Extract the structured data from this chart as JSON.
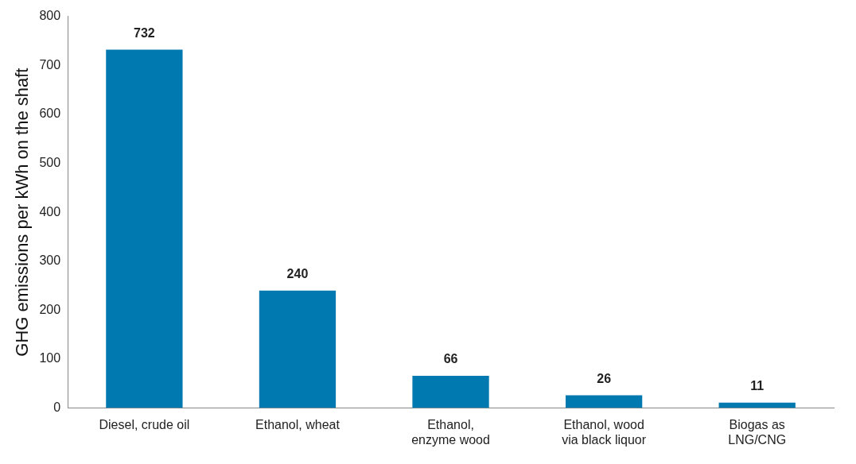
{
  "chart_data": {
    "type": "bar",
    "ylabel": "GHG emissions per kWh on the shaft",
    "categories": [
      "Diesel, crude oil",
      "Ethanol, wheat",
      "Ethanol,\nenzyme wood",
      "Ethanol, wood\nvia black liquor",
      "Biogas as\nLNG/CNG"
    ],
    "values": [
      732,
      240,
      66,
      26,
      11
    ],
    "color": "#0079b0",
    "ylim": [
      0,
      800
    ],
    "yticks": [
      0,
      100,
      200,
      300,
      400,
      500,
      600,
      700,
      800
    ],
    "grid": false,
    "legend": false,
    "data_labels": true
  }
}
